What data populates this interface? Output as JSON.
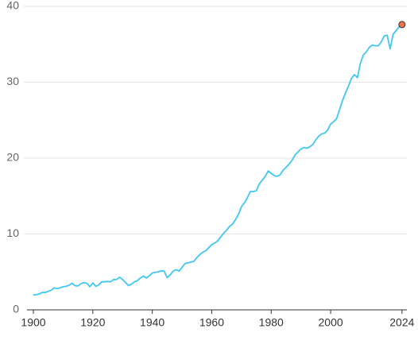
{
  "chart_data": {
    "type": "line",
    "x": [
      1900,
      1901,
      1902,
      1903,
      1904,
      1905,
      1906,
      1907,
      1908,
      1909,
      1910,
      1911,
      1912,
      1913,
      1914,
      1915,
      1916,
      1917,
      1918,
      1919,
      1920,
      1921,
      1922,
      1923,
      1924,
      1925,
      1926,
      1927,
      1928,
      1929,
      1930,
      1931,
      1932,
      1933,
      1934,
      1935,
      1936,
      1937,
      1938,
      1939,
      1940,
      1941,
      1942,
      1943,
      1944,
      1945,
      1946,
      1947,
      1948,
      1949,
      1950,
      1951,
      1952,
      1953,
      1954,
      1955,
      1956,
      1957,
      1958,
      1959,
      1960,
      1961,
      1962,
      1963,
      1964,
      1965,
      1966,
      1967,
      1968,
      1969,
      1970,
      1971,
      1972,
      1973,
      1974,
      1975,
      1976,
      1977,
      1978,
      1979,
      1980,
      1981,
      1982,
      1983,
      1984,
      1985,
      1986,
      1987,
      1988,
      1989,
      1990,
      1991,
      1992,
      1993,
      1994,
      1995,
      1996,
      1997,
      1998,
      1999,
      2000,
      2001,
      2002,
      2003,
      2004,
      2005,
      2006,
      2007,
      2008,
      2009,
      2010,
      2011,
      2012,
      2013,
      2014,
      2015,
      2016,
      2017,
      2018,
      2019,
      2020,
      2021,
      2022,
      2023,
      2024
    ],
    "series": [
      {
        "color": "#3fc8f2",
        "marker_color": "#f2734f",
        "values": [
          1.95,
          2.0,
          2.1,
          2.3,
          2.3,
          2.45,
          2.6,
          2.9,
          2.8,
          2.9,
          3.05,
          3.1,
          3.25,
          3.5,
          3.2,
          3.15,
          3.45,
          3.6,
          3.5,
          3.05,
          3.55,
          3.1,
          3.3,
          3.7,
          3.7,
          3.75,
          3.7,
          4.0,
          4.0,
          4.3,
          4.0,
          3.6,
          3.2,
          3.4,
          3.7,
          3.85,
          4.2,
          4.45,
          4.2,
          4.5,
          4.85,
          4.95,
          5.0,
          5.15,
          5.1,
          4.25,
          4.6,
          5.1,
          5.3,
          5.1,
          5.6,
          6.1,
          6.2,
          6.3,
          6.4,
          6.9,
          7.3,
          7.6,
          7.8,
          8.2,
          8.6,
          8.8,
          9.1,
          9.6,
          10.1,
          10.5,
          11.0,
          11.3,
          11.9,
          12.6,
          13.6,
          14.1,
          14.8,
          15.6,
          15.6,
          15.7,
          16.6,
          17.1,
          17.6,
          18.3,
          18.0,
          17.7,
          17.6,
          17.8,
          18.4,
          18.8,
          19.2,
          19.7,
          20.4,
          20.8,
          21.2,
          21.4,
          21.3,
          21.5,
          21.8,
          22.4,
          22.9,
          23.2,
          23.3,
          23.7,
          24.5,
          24.8,
          25.2,
          26.4,
          27.6,
          28.6,
          29.5,
          30.5,
          31.0,
          30.6,
          32.5,
          33.6,
          34.0,
          34.6,
          34.9,
          34.8,
          34.8,
          35.3,
          36.1,
          36.2,
          34.4,
          36.3,
          36.8,
          37.3,
          37.6
        ]
      }
    ],
    "xlim": [
      1900,
      2025
    ],
    "xticks": [
      1900,
      1920,
      1940,
      1960,
      1980,
      2000,
      2024
    ],
    "ylim": [
      0,
      40
    ],
    "yticks": [
      0,
      10,
      20,
      30,
      40
    ],
    "grid": true
  }
}
